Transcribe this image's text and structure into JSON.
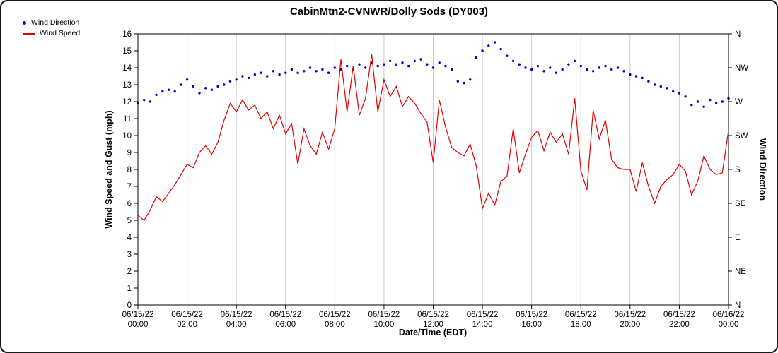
{
  "chart_data": {
    "type": "line",
    "title": "CabinMtn2-CVNWR/Dolly Sods (DY003)",
    "xlabel": "Date/Time (EDT)",
    "ylabel_left": "Wind Speed and Gust (mph)",
    "ylabel_right": "Wind Direction",
    "ylim_left": [
      0,
      16
    ],
    "x_range": [
      0,
      24
    ],
    "x_start_hour": 0,
    "x_step_hours": 0.25,
    "grid": "vertical-only",
    "legend_position": "top-left",
    "x_tick_hours": [
      0,
      2,
      4,
      6,
      8,
      10,
      12,
      14,
      16,
      18,
      20,
      22,
      24
    ],
    "x_tick_labels": [
      [
        "06/15/22",
        "00:00"
      ],
      [
        "06/15/22",
        "02:00"
      ],
      [
        "06/15/22",
        "04:00"
      ],
      [
        "06/15/22",
        "06:00"
      ],
      [
        "06/15/22",
        "08:00"
      ],
      [
        "06/15/22",
        "10:00"
      ],
      [
        "06/15/22",
        "12:00"
      ],
      [
        "06/15/22",
        "14:00"
      ],
      [
        "06/15/22",
        "16:00"
      ],
      [
        "06/15/22",
        "18:00"
      ],
      [
        "06/15/22",
        "20:00"
      ],
      [
        "06/15/22",
        "22:00"
      ],
      [
        "06/16/22",
        "00:00"
      ]
    ],
    "y_ticks_left": [
      0,
      1,
      2,
      3,
      4,
      5,
      6,
      7,
      8,
      9,
      10,
      11,
      12,
      13,
      14,
      15,
      16
    ],
    "y_ticks_right": [
      {
        "value": 16,
        "label": "N"
      },
      {
        "value": 14,
        "label": "NW"
      },
      {
        "value": 12,
        "label": "W"
      },
      {
        "value": 10,
        "label": "SW"
      },
      {
        "value": 8,
        "label": "S"
      },
      {
        "value": 6,
        "label": "SE"
      },
      {
        "value": 4,
        "label": "E"
      },
      {
        "value": 2,
        "label": "NE"
      },
      {
        "value": 0,
        "label": "N"
      }
    ],
    "colors": {
      "grid": "#c9c9c9",
      "axis": "#000000",
      "wind_direction": "#0000cc",
      "wind_speed": "#e00000"
    },
    "series": [
      {
        "name": "Wind Direction",
        "type": "scatter",
        "color": "#0000cc",
        "values_axis_units": [
          11.9,
          12.1,
          12.0,
          12.4,
          12.6,
          12.7,
          12.6,
          13.0,
          13.3,
          12.9,
          12.5,
          12.8,
          12.7,
          12.9,
          13.0,
          13.2,
          13.3,
          13.5,
          13.4,
          13.6,
          13.7,
          13.5,
          13.8,
          13.6,
          13.7,
          13.9,
          13.7,
          13.8,
          14.0,
          13.8,
          13.9,
          13.7,
          14.0,
          13.9,
          14.1,
          13.9,
          14.2,
          14.0,
          14.3,
          14.1,
          14.2,
          14.4,
          14.2,
          14.3,
          14.1,
          14.4,
          14.5,
          14.2,
          14.0,
          14.3,
          14.1,
          13.9,
          13.2,
          13.1,
          13.3,
          14.6,
          15.0,
          15.3,
          15.5,
          15.1,
          14.7,
          14.4,
          14.2,
          14.0,
          13.9,
          14.1,
          13.8,
          14.0,
          13.7,
          13.9,
          14.2,
          14.4,
          14.1,
          13.9,
          13.8,
          14.0,
          14.1,
          13.9,
          14.0,
          13.8,
          13.6,
          13.5,
          13.4,
          13.2,
          13.0,
          12.9,
          12.8,
          12.6,
          12.5,
          12.3,
          11.8,
          12.0,
          11.7,
          12.1,
          11.9,
          12.0,
          12.2
        ]
      },
      {
        "name": "Wind Speed",
        "type": "line",
        "color": "#e00000",
        "values_axis_units": [
          5.3,
          5.0,
          5.6,
          6.4,
          6.1,
          6.6,
          7.1,
          7.7,
          8.3,
          8.1,
          9.0,
          9.4,
          8.9,
          9.6,
          10.9,
          11.9,
          11.4,
          12.1,
          11.5,
          11.8,
          11.0,
          11.4,
          10.4,
          11.2,
          10.1,
          10.7,
          8.3,
          10.4,
          9.4,
          8.9,
          10.2,
          9.2,
          10.4,
          14.5,
          11.4,
          14.1,
          11.2,
          12.2,
          14.8,
          11.4,
          13.3,
          12.3,
          12.9,
          11.7,
          12.3,
          11.9,
          11.3,
          10.8,
          8.4,
          12.1,
          10.5,
          9.3,
          9.0,
          8.8,
          9.5,
          8.2,
          5.7,
          6.6,
          5.9,
          7.3,
          7.6,
          10.4,
          7.8,
          8.9,
          9.9,
          10.3,
          9.1,
          10.2,
          9.6,
          10.1,
          8.9,
          12.2,
          7.9,
          6.8,
          11.5,
          9.8,
          10.9,
          8.6,
          8.1,
          8.0,
          8.0,
          6.7,
          8.4,
          7.0,
          6.0,
          7.0,
          7.4,
          7.7,
          8.3,
          7.9,
          6.5,
          7.3,
          8.8,
          8.0,
          7.7,
          7.8,
          10.3
        ]
      }
    ]
  }
}
